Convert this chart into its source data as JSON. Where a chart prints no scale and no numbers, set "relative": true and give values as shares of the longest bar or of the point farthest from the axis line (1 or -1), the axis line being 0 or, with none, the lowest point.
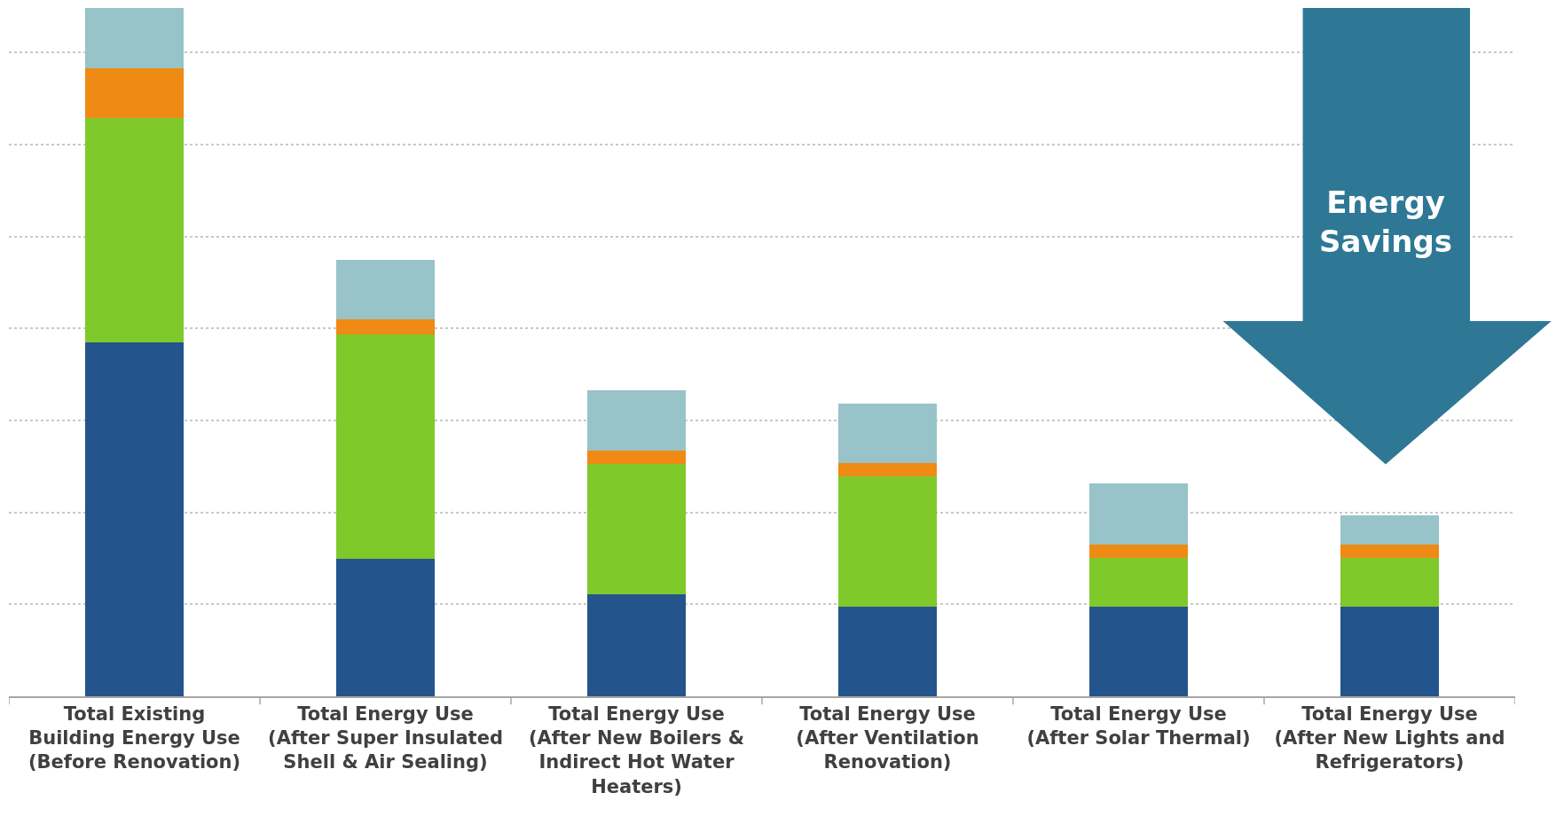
{
  "chart_data": {
    "type": "bar",
    "stacked": true,
    "relative": true,
    "grid": "y",
    "categories": [
      "Total Existing Building Energy Use (Before Renovation)",
      "Total Energy Use (After Super Insulated Shell & Air Sealing)",
      "Total Energy Use (After New Boilers & Indirect Hot Water Heaters)",
      "Total Energy Use (After Ventilation Renovation)",
      "Total Energy Use (After Solar Thermal)",
      "Total Energy Use (After New Lights and Refrigerators)"
    ],
    "series": [
      {
        "color": "#23548c",
        "values": [
          0.514,
          0.2,
          0.148,
          0.13,
          0.13,
          0.13
        ]
      },
      {
        "color": "#7fc92b",
        "values": [
          0.326,
          0.326,
          0.19,
          0.189,
          0.071,
          0.071
        ]
      },
      {
        "color": "#ef8a14",
        "values": [
          0.072,
          0.022,
          0.019,
          0.02,
          0.02,
          0.02
        ]
      },
      {
        "color": "#97c3c9",
        "values": [
          0.088,
          0.086,
          0.088,
          0.086,
          0.088,
          0.042
        ]
      }
    ],
    "annotations": [
      "Energy Savings"
    ]
  }
}
